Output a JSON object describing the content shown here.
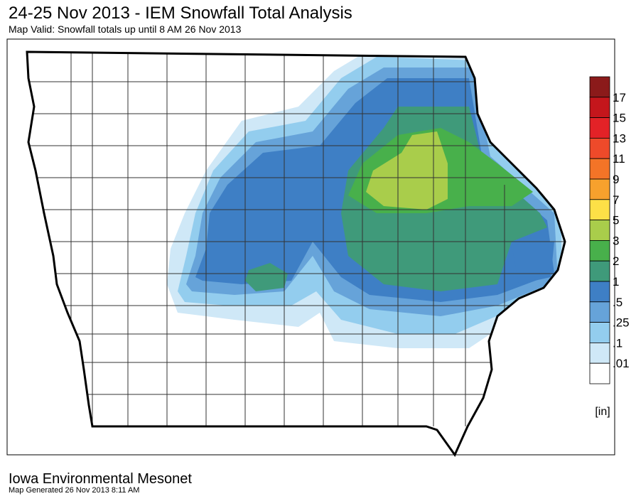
{
  "header": {
    "title": "24-25 Nov 2013 - IEM Snowfall Total Analysis",
    "subtitle": "Map Valid: Snowfall totals up until 8 AM 26 Nov 2013"
  },
  "legend": {
    "labels": [
      "17",
      "15",
      "13",
      "11",
      "9",
      "7",
      "5",
      "3",
      "2",
      "1",
      ".5",
      ".25",
      ".1",
      ".01"
    ],
    "colors": [
      "#8b1a1a",
      "#c4161c",
      "#e32227",
      "#ee4a2a",
      "#f37427",
      "#f7a12d",
      "#fde047",
      "#a9cd4b",
      "#48b04b",
      "#3f9a7a",
      "#3e7fc5",
      "#66a3d9",
      "#93cdee",
      "#cfe8f7",
      "#ffffff"
    ],
    "unit": "[in]"
  },
  "footer": {
    "org": "Iowa Environmental Mesonet",
    "generated": "Map Generated 26 Nov 2013 8:11 AM"
  }
}
